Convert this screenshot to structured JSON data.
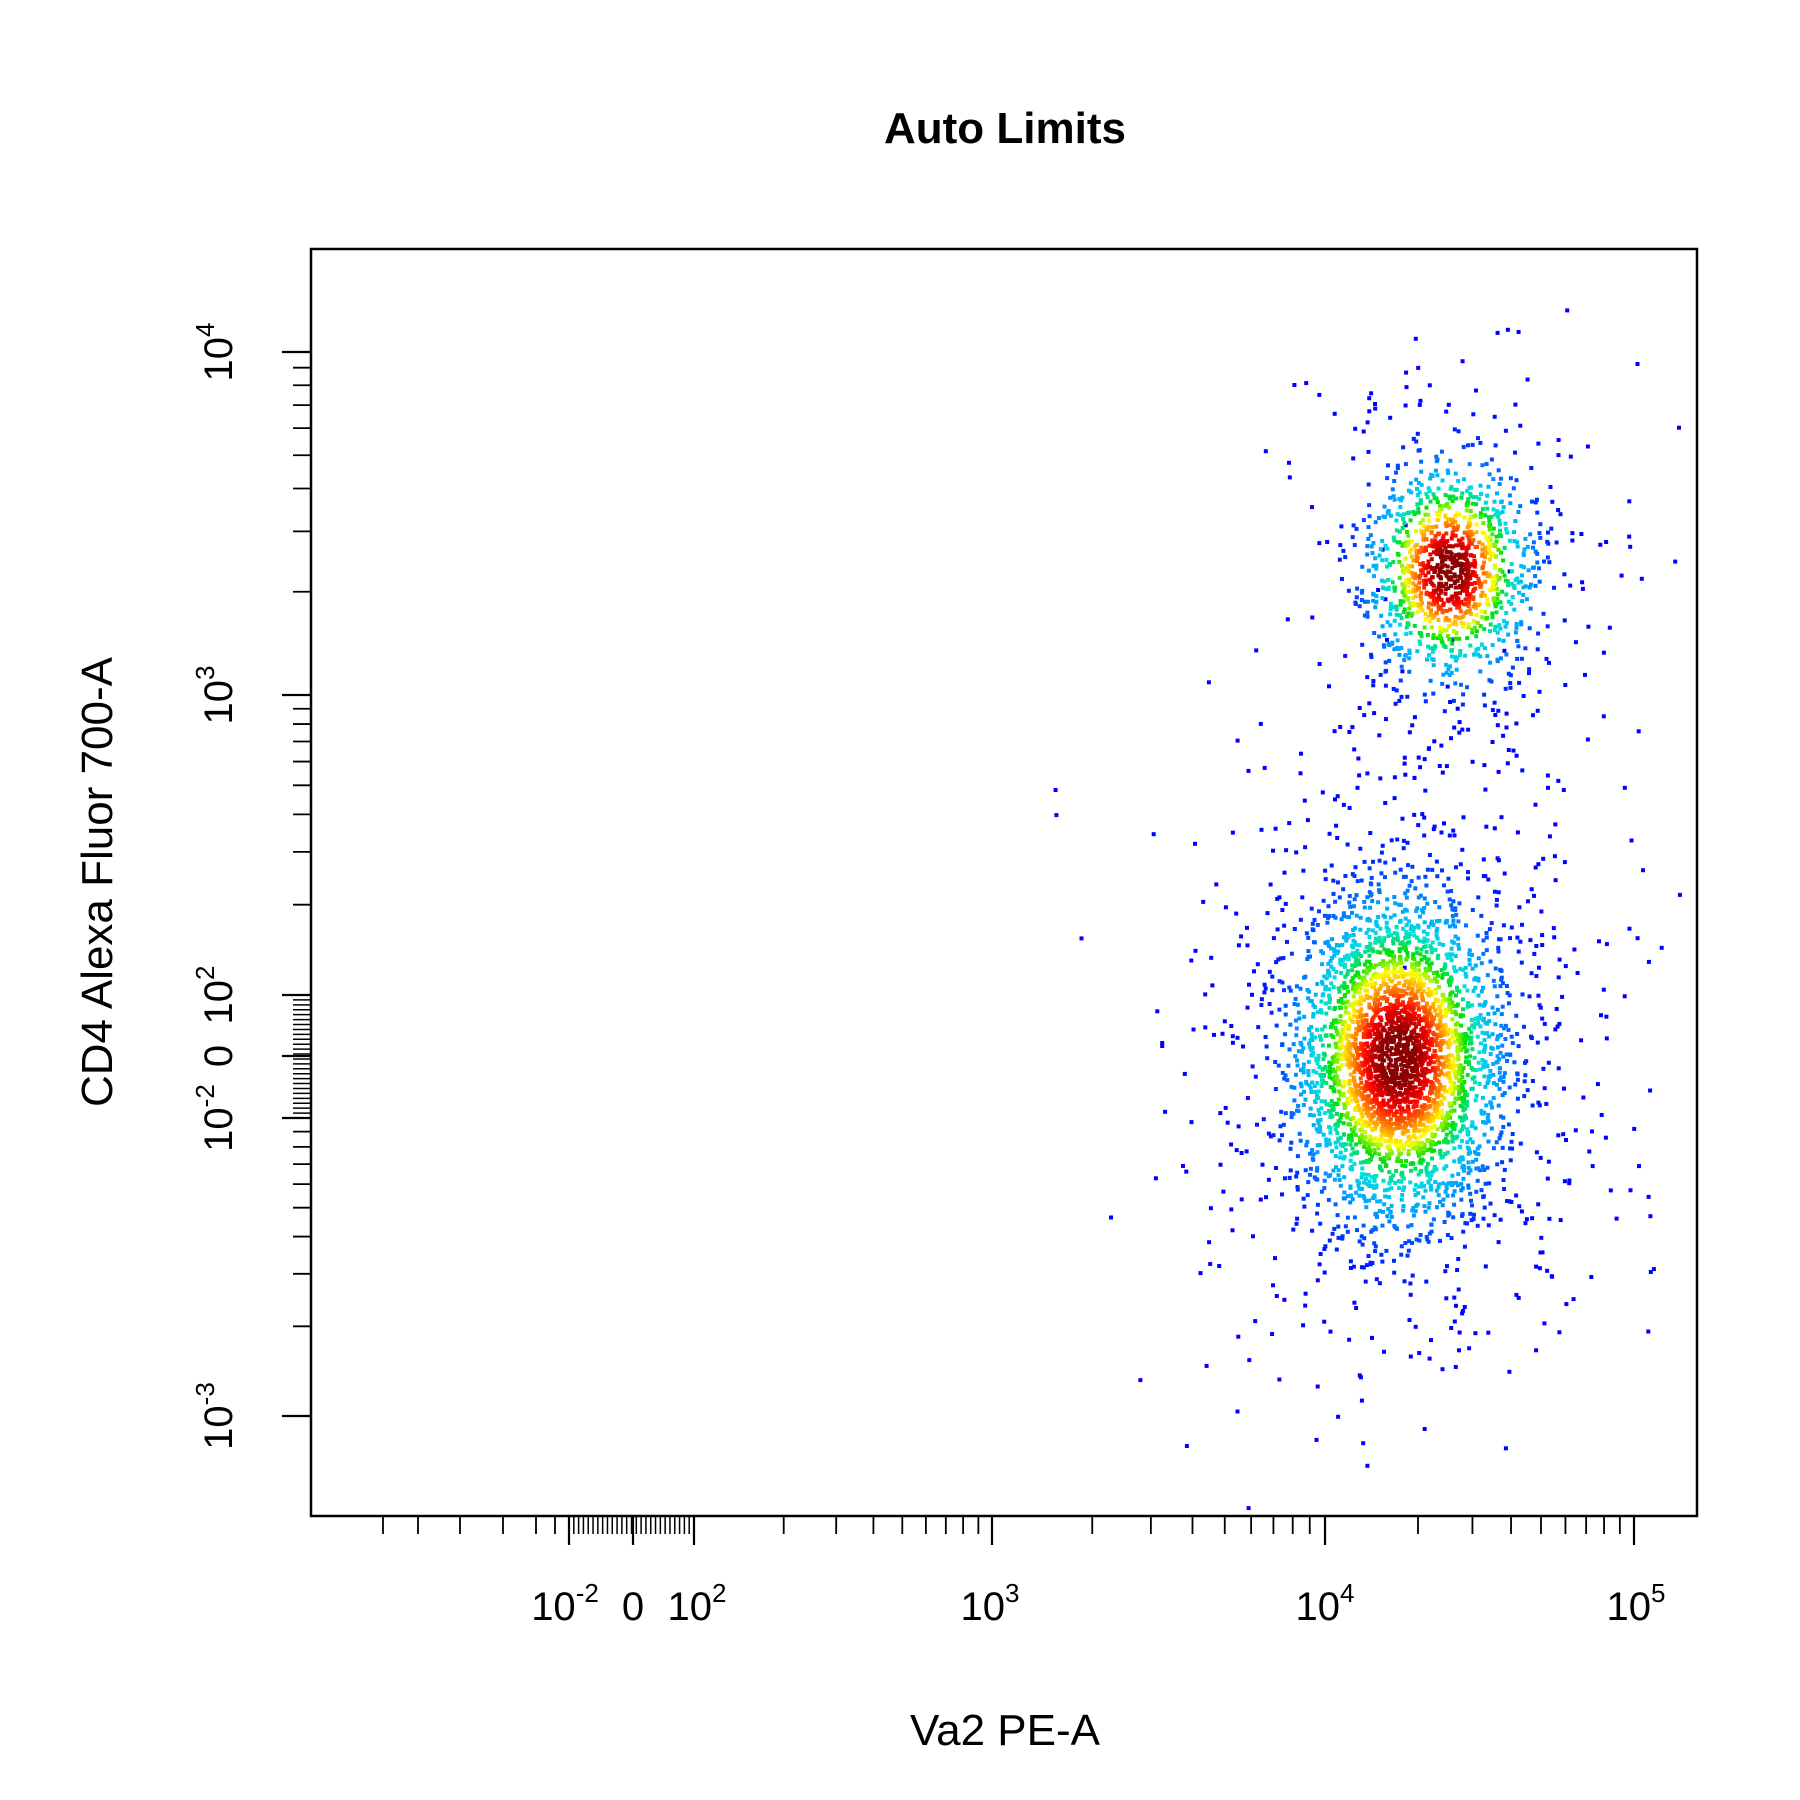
{
  "chart_data": {
    "type": "scatter",
    "title": "Auto Limits",
    "xlabel": "Va2 PE-A",
    "ylabel": "CD4 Alexa Fluor 700-A",
    "x_scale": "biexponential",
    "y_scale": "biexponential",
    "density_colored": true,
    "colormap": [
      "#0000ff",
      "#00a0ff",
      "#00e0e0",
      "#00e000",
      "#ffff00",
      "#ff8000",
      "#ff0000",
      "#8b0000"
    ],
    "x_tick_labels": [
      {
        "base": "10",
        "exp": "-2"
      },
      {
        "base": "0",
        "exp": ""
      },
      {
        "base": "10",
        "exp": "2"
      },
      {
        "base": "10",
        "exp": "3"
      },
      {
        "base": "10",
        "exp": "4"
      },
      {
        "base": "10",
        "exp": "5"
      }
    ],
    "y_tick_labels": [
      {
        "base": "10",
        "exp": "-3"
      },
      {
        "base": "10",
        "exp": "-2"
      },
      {
        "base": "0",
        "exp": ""
      },
      {
        "base": "10",
        "exp": "2"
      },
      {
        "base": "10",
        "exp": "3"
      },
      {
        "base": "10",
        "exp": "4"
      }
    ],
    "clusters": [
      {
        "center_x": 17000,
        "center_y": 0,
        "n_points": 3800
      },
      {
        "center_x": 25000,
        "center_y": 2500,
        "n_points": 1300
      }
    ],
    "grid": false,
    "legend": false
  }
}
